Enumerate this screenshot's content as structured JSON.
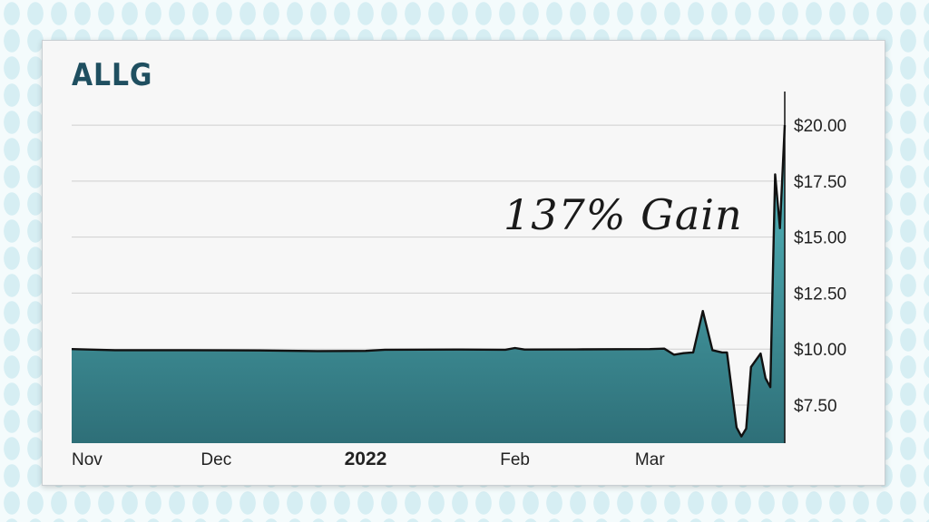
{
  "ticker": "ALLG",
  "annotation": "137% Gain",
  "colors": {
    "area_top": "#56bcc2",
    "area_bottom": "#2e6f78",
    "line": "#111111",
    "grid": "#cfcfcf",
    "title": "#1f4f60"
  },
  "chart_data": {
    "type": "area",
    "title": "ALLG",
    "xlabel": "",
    "ylabel": "",
    "ylim": [
      5.8,
      21.5
    ],
    "grid": true,
    "y_axis_position": "right",
    "y_ticks": [
      {
        "value": 20,
        "label": "$20.00"
      },
      {
        "value": 17.5,
        "label": "$17.50"
      },
      {
        "value": 15,
        "label": "$15.00"
      },
      {
        "value": 12.5,
        "label": "$12.50"
      },
      {
        "value": 10,
        "label": "$10.00"
      },
      {
        "value": 7.5,
        "label": "$7.50"
      }
    ],
    "x_ticks": [
      {
        "date": "2021-11-01",
        "label": "Nov",
        "bold": false
      },
      {
        "date": "2021-12-01",
        "label": "Dec",
        "bold": false
      },
      {
        "date": "2022-01-01",
        "label": "2022",
        "bold": true
      },
      {
        "date": "2022-02-01",
        "label": "Feb",
        "bold": false
      },
      {
        "date": "2022-03-01",
        "label": "Mar",
        "bold": false
      }
    ],
    "x_range": [
      "2021-11-01",
      "2022-03-29"
    ],
    "series": [
      {
        "points": [
          {
            "x": "2021-11-01",
            "y": 10.0
          },
          {
            "x": "2021-11-10",
            "y": 9.95
          },
          {
            "x": "2021-11-25",
            "y": 9.95
          },
          {
            "x": "2021-12-10",
            "y": 9.94
          },
          {
            "x": "2021-12-22",
            "y": 9.91
          },
          {
            "x": "2022-01-01",
            "y": 9.92
          },
          {
            "x": "2022-01-05",
            "y": 9.97
          },
          {
            "x": "2022-01-20",
            "y": 9.98
          },
          {
            "x": "2022-01-30",
            "y": 9.97
          },
          {
            "x": "2022-02-01",
            "y": 10.05
          },
          {
            "x": "2022-02-03",
            "y": 9.98
          },
          {
            "x": "2022-02-15",
            "y": 9.99
          },
          {
            "x": "2022-03-01",
            "y": 10.0
          },
          {
            "x": "2022-03-04",
            "y": 10.02
          },
          {
            "x": "2022-03-06",
            "y": 9.75
          },
          {
            "x": "2022-03-08",
            "y": 9.82
          },
          {
            "x": "2022-03-10",
            "y": 9.85
          },
          {
            "x": "2022-03-12",
            "y": 11.7
          },
          {
            "x": "2022-03-14",
            "y": 9.95
          },
          {
            "x": "2022-03-16",
            "y": 9.85
          },
          {
            "x": "2022-03-17",
            "y": 9.85
          },
          {
            "x": "2022-03-19",
            "y": 6.5
          },
          {
            "x": "2022-03-20",
            "y": 6.1
          },
          {
            "x": "2022-03-21",
            "y": 6.45
          },
          {
            "x": "2022-03-22",
            "y": 9.2
          },
          {
            "x": "2022-03-24",
            "y": 9.8
          },
          {
            "x": "2022-03-25",
            "y": 8.7
          },
          {
            "x": "2022-03-26",
            "y": 8.3
          },
          {
            "x": "2022-03-27",
            "y": 17.8
          },
          {
            "x": "2022-03-28",
            "y": 15.4
          },
          {
            "x": "2022-03-29",
            "y": 20.0
          }
        ]
      }
    ]
  }
}
